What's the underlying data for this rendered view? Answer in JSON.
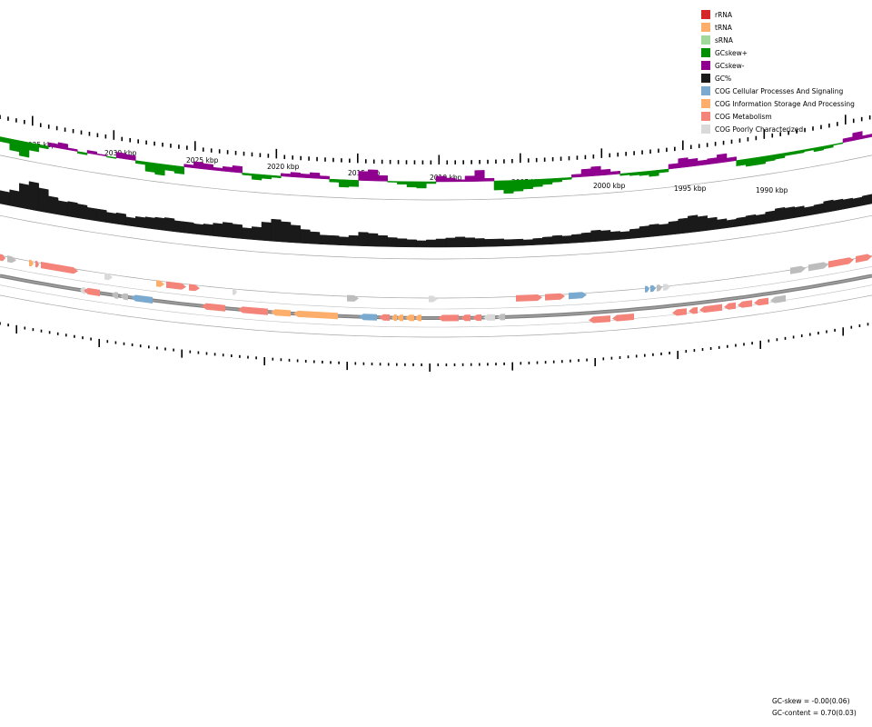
{
  "legend": {
    "items": [
      {
        "label": "rRNA",
        "color": "#d62728"
      },
      {
        "label": "tRNA",
        "color": "#fdae6b"
      },
      {
        "label": "sRNA",
        "color": "#a1d99b"
      },
      {
        "label": "GCskew+",
        "color": "#008f00"
      },
      {
        "label": "GCskew-",
        "color": "#8f008f"
      },
      {
        "label": "GC%",
        "color": "#1a1a1a"
      },
      {
        "label": "COG Cellular Processes And Signaling",
        "color": "#7aaad0"
      },
      {
        "label": "COG Information Storage And Processing",
        "color": "#fdae6b"
      },
      {
        "label": "COG Metabolism",
        "color": "#f4837a"
      },
      {
        "label": "COG Poorly Characterized",
        "color": "#d9d9d9"
      }
    ]
  },
  "ruler": {
    "labels": [
      "2035 kbp",
      "2030 kbp",
      "2025 kbp",
      "2020 kbp",
      "2015 kbp",
      "2010 kbp",
      "2005 kbp",
      "2000 kbp",
      "1995 kbp",
      "1990 kbp"
    ]
  },
  "stats": {
    "gc_skew": "GC-skew = -0.00(0.06)",
    "gc_content": "GC-content = 0.70(0.03)"
  },
  "colors": {
    "skew_pos": "#008f00",
    "skew_neg": "#8f008f",
    "gc": "#1a1a1a",
    "cellular": "#7aaad0",
    "information": "#fdae6b",
    "metabolism": "#f4837a",
    "poor": "#d9d9d9",
    "other": "#bdbdbd",
    "backbone": "#808080"
  }
}
